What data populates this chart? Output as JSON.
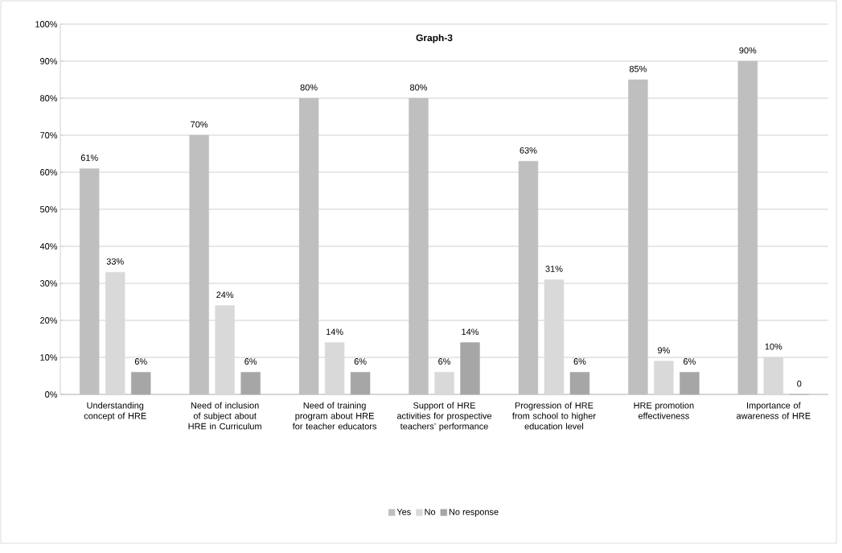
{
  "chart_data": {
    "type": "bar",
    "title": "Graph-3",
    "categories": [
      "Understanding concept of HRE",
      "Need of inclusion of subject about HRE in Curriculum",
      "Need of training program about HRE for teacher educators",
      "Support of HRE activities for prospective teachers’ performance",
      "Progression of HRE from school to higher education level",
      "HRE promotion effectiveness",
      "Importance of awareness of HRE"
    ],
    "series": [
      {
        "name": "Yes",
        "color": "#bfbfbf",
        "values": [
          61,
          70,
          80,
          80,
          63,
          85,
          90
        ],
        "value_labels": [
          "61%",
          "70%",
          "80%",
          "80%",
          "63%",
          "85%",
          "90%"
        ]
      },
      {
        "name": "No",
        "color": "#d9d9d9",
        "values": [
          33,
          24,
          14,
          6,
          31,
          9,
          10
        ],
        "value_labels": [
          "33%",
          "24%",
          "14%",
          "6%",
          "31%",
          "9%",
          "10%"
        ]
      },
      {
        "name": "No response",
        "color": "#a6a6a6",
        "values": [
          6,
          6,
          6,
          14,
          6,
          6,
          0
        ],
        "value_labels": [
          "6%",
          "6%",
          "6%",
          "14%",
          "6%",
          "6%",
          "0"
        ]
      }
    ],
    "ylim": [
      0,
      100
    ],
    "yticks": [
      {
        "value": 0,
        "label": "0%"
      },
      {
        "value": 10,
        "label": "10%"
      },
      {
        "value": 20,
        "label": "20%"
      },
      {
        "value": 30,
        "label": "30%"
      },
      {
        "value": 40,
        "label": "40%"
      },
      {
        "value": 50,
        "label": "50%"
      },
      {
        "value": 60,
        "label": "60%"
      },
      {
        "value": 70,
        "label": "70%"
      },
      {
        "value": 80,
        "label": "80%"
      },
      {
        "value": 90,
        "label": "90%"
      },
      {
        "value": 100,
        "label": "100%"
      }
    ],
    "grid": "y",
    "legend": "bottom"
  }
}
